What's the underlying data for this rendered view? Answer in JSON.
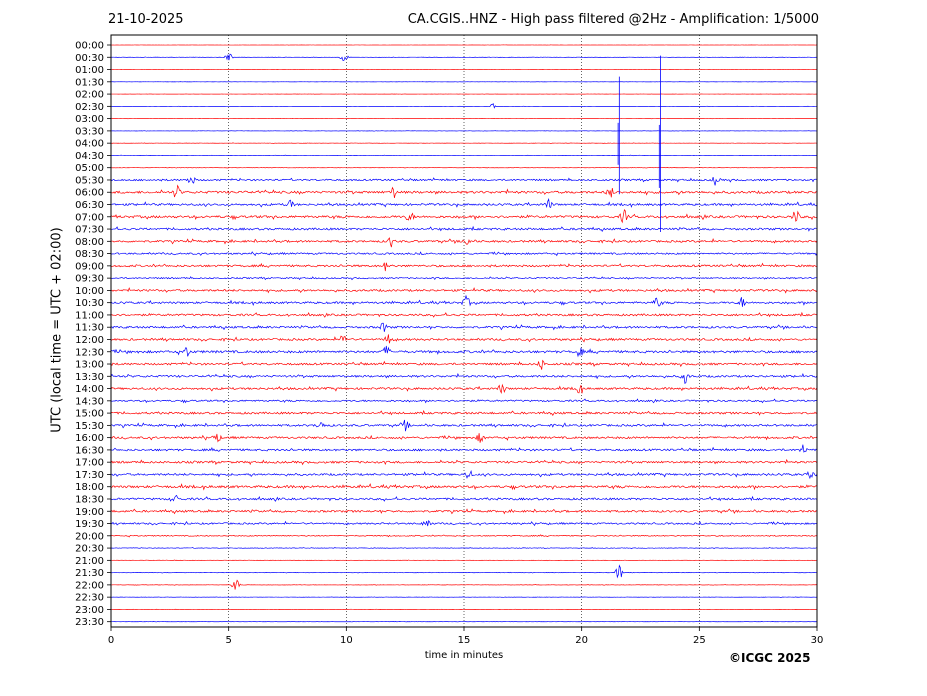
{
  "header": {
    "date": "21-10-2025",
    "title": "CA.CGIS..HNZ - High pass filtered @2Hz - Amplification: 1/5000"
  },
  "footer": {
    "copyright": "©ICGC 2025"
  },
  "colors": {
    "trace_a": "#ff0000",
    "trace_b": "#0000ff",
    "axis": "#000000"
  },
  "chart_data": {
    "type": "line",
    "subtype": "helicorder",
    "title": "CA.CGIS..HNZ - High pass filtered @2Hz - Amplification: 1/5000",
    "xlabel": "time in minutes",
    "ylabel": "UTC (local time = UTC + 02:00)",
    "xlim": [
      0,
      30
    ],
    "x_ticks": [
      0,
      5,
      10,
      15,
      20,
      25,
      30
    ],
    "x_tick_labels": [
      "0",
      "5",
      "10",
      "15",
      "20",
      "25",
      "30"
    ],
    "rows": [
      "00:00",
      "00:30",
      "01:00",
      "01:30",
      "02:00",
      "02:30",
      "03:00",
      "03:30",
      "04:00",
      "04:30",
      "05:00",
      "05:30",
      "06:00",
      "06:30",
      "07:00",
      "07:30",
      "08:00",
      "08:30",
      "09:00",
      "09:30",
      "10:00",
      "10:30",
      "11:00",
      "11:30",
      "12:00",
      "12:30",
      "13:00",
      "13:30",
      "14:00",
      "14:30",
      "15:00",
      "15:30",
      "16:00",
      "16:30",
      "17:00",
      "17:30",
      "18:00",
      "18:30",
      "19:00",
      "19:30",
      "20:00",
      "20:30",
      "21:00",
      "21:30",
      "22:00",
      "22:30",
      "23:00",
      "23:30"
    ],
    "row_colors": [
      "red",
      "blue"
    ],
    "vertical_gridlines_at": [
      5,
      10,
      15,
      20,
      25
    ],
    "grid": "vertical dotted",
    "row_noise_level": [
      0.02,
      0.04,
      0.02,
      0.02,
      0.02,
      0.02,
      0.02,
      0.04,
      0.04,
      0.04,
      0.05,
      0.25,
      0.35,
      0.3,
      0.35,
      0.3,
      0.3,
      0.25,
      0.3,
      0.2,
      0.3,
      0.3,
      0.3,
      0.3,
      0.3,
      0.35,
      0.3,
      0.3,
      0.3,
      0.25,
      0.3,
      0.3,
      0.3,
      0.3,
      0.3,
      0.3,
      0.35,
      0.3,
      0.3,
      0.25,
      0.15,
      0.08,
      0.05,
      0.05,
      0.05,
      0.04,
      0.03,
      0.03
    ],
    "events": [
      {
        "row": "00:30",
        "minute": 5.0,
        "amp": 0.6
      },
      {
        "row": "00:30",
        "minute": 9.9,
        "amp": 0.6
      },
      {
        "row": "02:30",
        "minute": 16.2,
        "amp": 0.4
      },
      {
        "row": "03:00",
        "minute": 21.6,
        "amp": 3.0
      },
      {
        "row": "03:00",
        "minute": 23.35,
        "amp": 4.5
      },
      {
        "row": "05:30",
        "minute": 3.4,
        "amp": 0.6
      },
      {
        "row": "05:30",
        "minute": 25.7,
        "amp": 0.6
      },
      {
        "row": "06:00",
        "minute": 2.8,
        "amp": 0.8
      },
      {
        "row": "06:00",
        "minute": 12.0,
        "amp": 0.7
      },
      {
        "row": "06:00",
        "minute": 21.2,
        "amp": 0.7
      },
      {
        "row": "06:30",
        "minute": 7.6,
        "amp": 0.6
      },
      {
        "row": "06:30",
        "minute": 18.6,
        "amp": 0.6
      },
      {
        "row": "07:00",
        "minute": 12.7,
        "amp": 0.6
      },
      {
        "row": "07:00",
        "minute": 21.8,
        "amp": 0.8
      },
      {
        "row": "07:00",
        "minute": 29.1,
        "amp": 0.8
      },
      {
        "row": "08:00",
        "minute": 11.9,
        "amp": 0.6
      },
      {
        "row": "08:00",
        "minute": 15.1,
        "amp": 0.6
      },
      {
        "row": "09:00",
        "minute": 11.7,
        "amp": 0.6
      },
      {
        "row": "10:30",
        "minute": 15.1,
        "amp": 0.7
      },
      {
        "row": "10:30",
        "minute": 23.2,
        "amp": 0.6
      },
      {
        "row": "10:30",
        "minute": 26.8,
        "amp": 0.6
      },
      {
        "row": "11:30",
        "minute": 11.6,
        "amp": 0.6
      },
      {
        "row": "12:00",
        "minute": 9.9,
        "amp": 0.7
      },
      {
        "row": "12:00",
        "minute": 11.8,
        "amp": 0.7
      },
      {
        "row": "12:30",
        "minute": 3.2,
        "amp": 0.6
      },
      {
        "row": "12:30",
        "minute": 11.7,
        "amp": 0.6
      },
      {
        "row": "12:30",
        "minute": 19.9,
        "amp": 0.6
      },
      {
        "row": "13:00",
        "minute": 18.3,
        "amp": 0.6
      },
      {
        "row": "13:30",
        "minute": 24.4,
        "amp": 0.8
      },
      {
        "row": "14:00",
        "minute": 16.6,
        "amp": 0.6
      },
      {
        "row": "14:00",
        "minute": 19.9,
        "amp": 0.6
      },
      {
        "row": "15:30",
        "minute": 8.9,
        "amp": 0.6
      },
      {
        "row": "15:30",
        "minute": 12.5,
        "amp": 0.6
      },
      {
        "row": "16:00",
        "minute": 4.5,
        "amp": 0.6
      },
      {
        "row": "16:00",
        "minute": 15.7,
        "amp": 0.6
      },
      {
        "row": "16:30",
        "minute": 29.4,
        "amp": 0.6
      },
      {
        "row": "17:30",
        "minute": 15.2,
        "amp": 0.6
      },
      {
        "row": "17:30",
        "minute": 29.8,
        "amp": 0.6
      },
      {
        "row": "18:30",
        "minute": 2.7,
        "amp": 0.6
      },
      {
        "row": "19:30",
        "minute": 13.4,
        "amp": 0.7
      },
      {
        "row": "21:30",
        "minute": 21.6,
        "amp": 0.9
      },
      {
        "row": "22:00",
        "minute": 5.3,
        "amp": 0.8
      }
    ]
  }
}
